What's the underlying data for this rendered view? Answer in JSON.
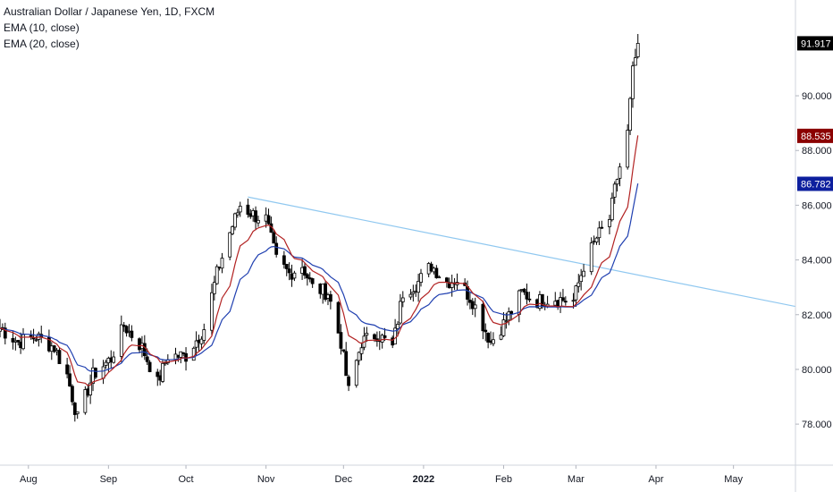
{
  "legend": {
    "title": "Australian Dollar / Japanese Yen, 1D, FXCM",
    "ema10": "EMA (10, close)",
    "ema20": "EMA (20, close)"
  },
  "colors": {
    "up_candle_fill": "#ffffff",
    "candle_stroke": "#000000",
    "ema10": "#b22222",
    "ema20": "#1f3fb0",
    "trendline": "#90c8f0",
    "price_badge": "#000000",
    "ema10_badge": "#8b0000",
    "ema20_badge": "#0d1f9e"
  },
  "price_labels": {
    "last": "91.917",
    "ema10": "88.535",
    "ema20": "86.782"
  },
  "chart_data": {
    "type": "candlestick",
    "title": "Australian Dollar / Japanese Yen, 1D, FXCM",
    "ylim": [
      76.5,
      93.5
    ],
    "y_ticks": [
      "78.000",
      "80.000",
      "82.000",
      "84.000",
      "86.000",
      "88.000",
      "90.000"
    ],
    "x_ticks": [
      "Aug",
      "Sep",
      "Oct",
      "Nov",
      "Dec",
      "2022",
      "Feb",
      "Mar",
      "Apr",
      "May"
    ],
    "x_range": [
      "2021-07-21",
      "2022-05-25"
    ],
    "last_price": 91.917,
    "ema10_last": 88.535,
    "ema20_last": 86.782,
    "trendline": {
      "start": [
        "2021-10-25",
        86.3
      ],
      "end": [
        "2022-05-25",
        82.3
      ]
    },
    "close_path": [
      [
        "2021-07-21",
        81.5
      ],
      [
        "2021-07-28",
        81.0
      ],
      [
        "2021-08-04",
        81.2
      ],
      [
        "2021-08-11",
        80.8
      ],
      [
        "2021-08-16",
        79.8
      ],
      [
        "2021-08-20",
        78.2
      ],
      [
        "2021-08-26",
        79.8
      ],
      [
        "2021-09-02",
        80.4
      ],
      [
        "2021-09-07",
        81.6
      ],
      [
        "2021-09-14",
        80.8
      ],
      [
        "2021-09-20",
        79.5
      ],
      [
        "2021-09-24",
        80.5
      ],
      [
        "2021-10-01",
        80.5
      ],
      [
        "2021-10-08",
        81.5
      ],
      [
        "2021-10-13",
        83.5
      ],
      [
        "2021-10-18",
        85.0
      ],
      [
        "2021-10-22",
        86.0
      ],
      [
        "2021-10-28",
        85.6
      ],
      [
        "2021-11-01",
        85.5
      ],
      [
        "2021-11-05",
        84.0
      ],
      [
        "2021-11-10",
        83.5
      ],
      [
        "2021-11-15",
        83.8
      ],
      [
        "2021-11-19",
        83.0
      ],
      [
        "2021-11-25",
        82.8
      ],
      [
        "2021-11-30",
        81.0
      ],
      [
        "2021-12-03",
        79.2
      ],
      [
        "2021-12-08",
        81.0
      ],
      [
        "2021-12-14",
        81.3
      ],
      [
        "2021-12-20",
        80.8
      ],
      [
        "2021-12-24",
        82.8
      ],
      [
        "2021-12-30",
        83.2
      ],
      [
        "2022-01-04",
        83.8
      ],
      [
        "2022-01-10",
        83.2
      ],
      [
        "2022-01-14",
        83.3
      ],
      [
        "2022-01-20",
        82.5
      ],
      [
        "2022-01-27",
        81.0
      ],
      [
        "2022-02-02",
        81.8
      ],
      [
        "2022-02-08",
        82.8
      ],
      [
        "2022-02-14",
        82.5
      ],
      [
        "2022-02-21",
        82.6
      ],
      [
        "2022-02-28",
        82.5
      ],
      [
        "2022-03-04",
        83.8
      ],
      [
        "2022-03-09",
        84.8
      ],
      [
        "2022-03-14",
        85.5
      ],
      [
        "2022-03-17",
        87.0
      ],
      [
        "2022-03-21",
        88.6
      ],
      [
        "2022-03-23",
        90.8
      ],
      [
        "2022-03-25",
        91.917
      ]
    ]
  }
}
